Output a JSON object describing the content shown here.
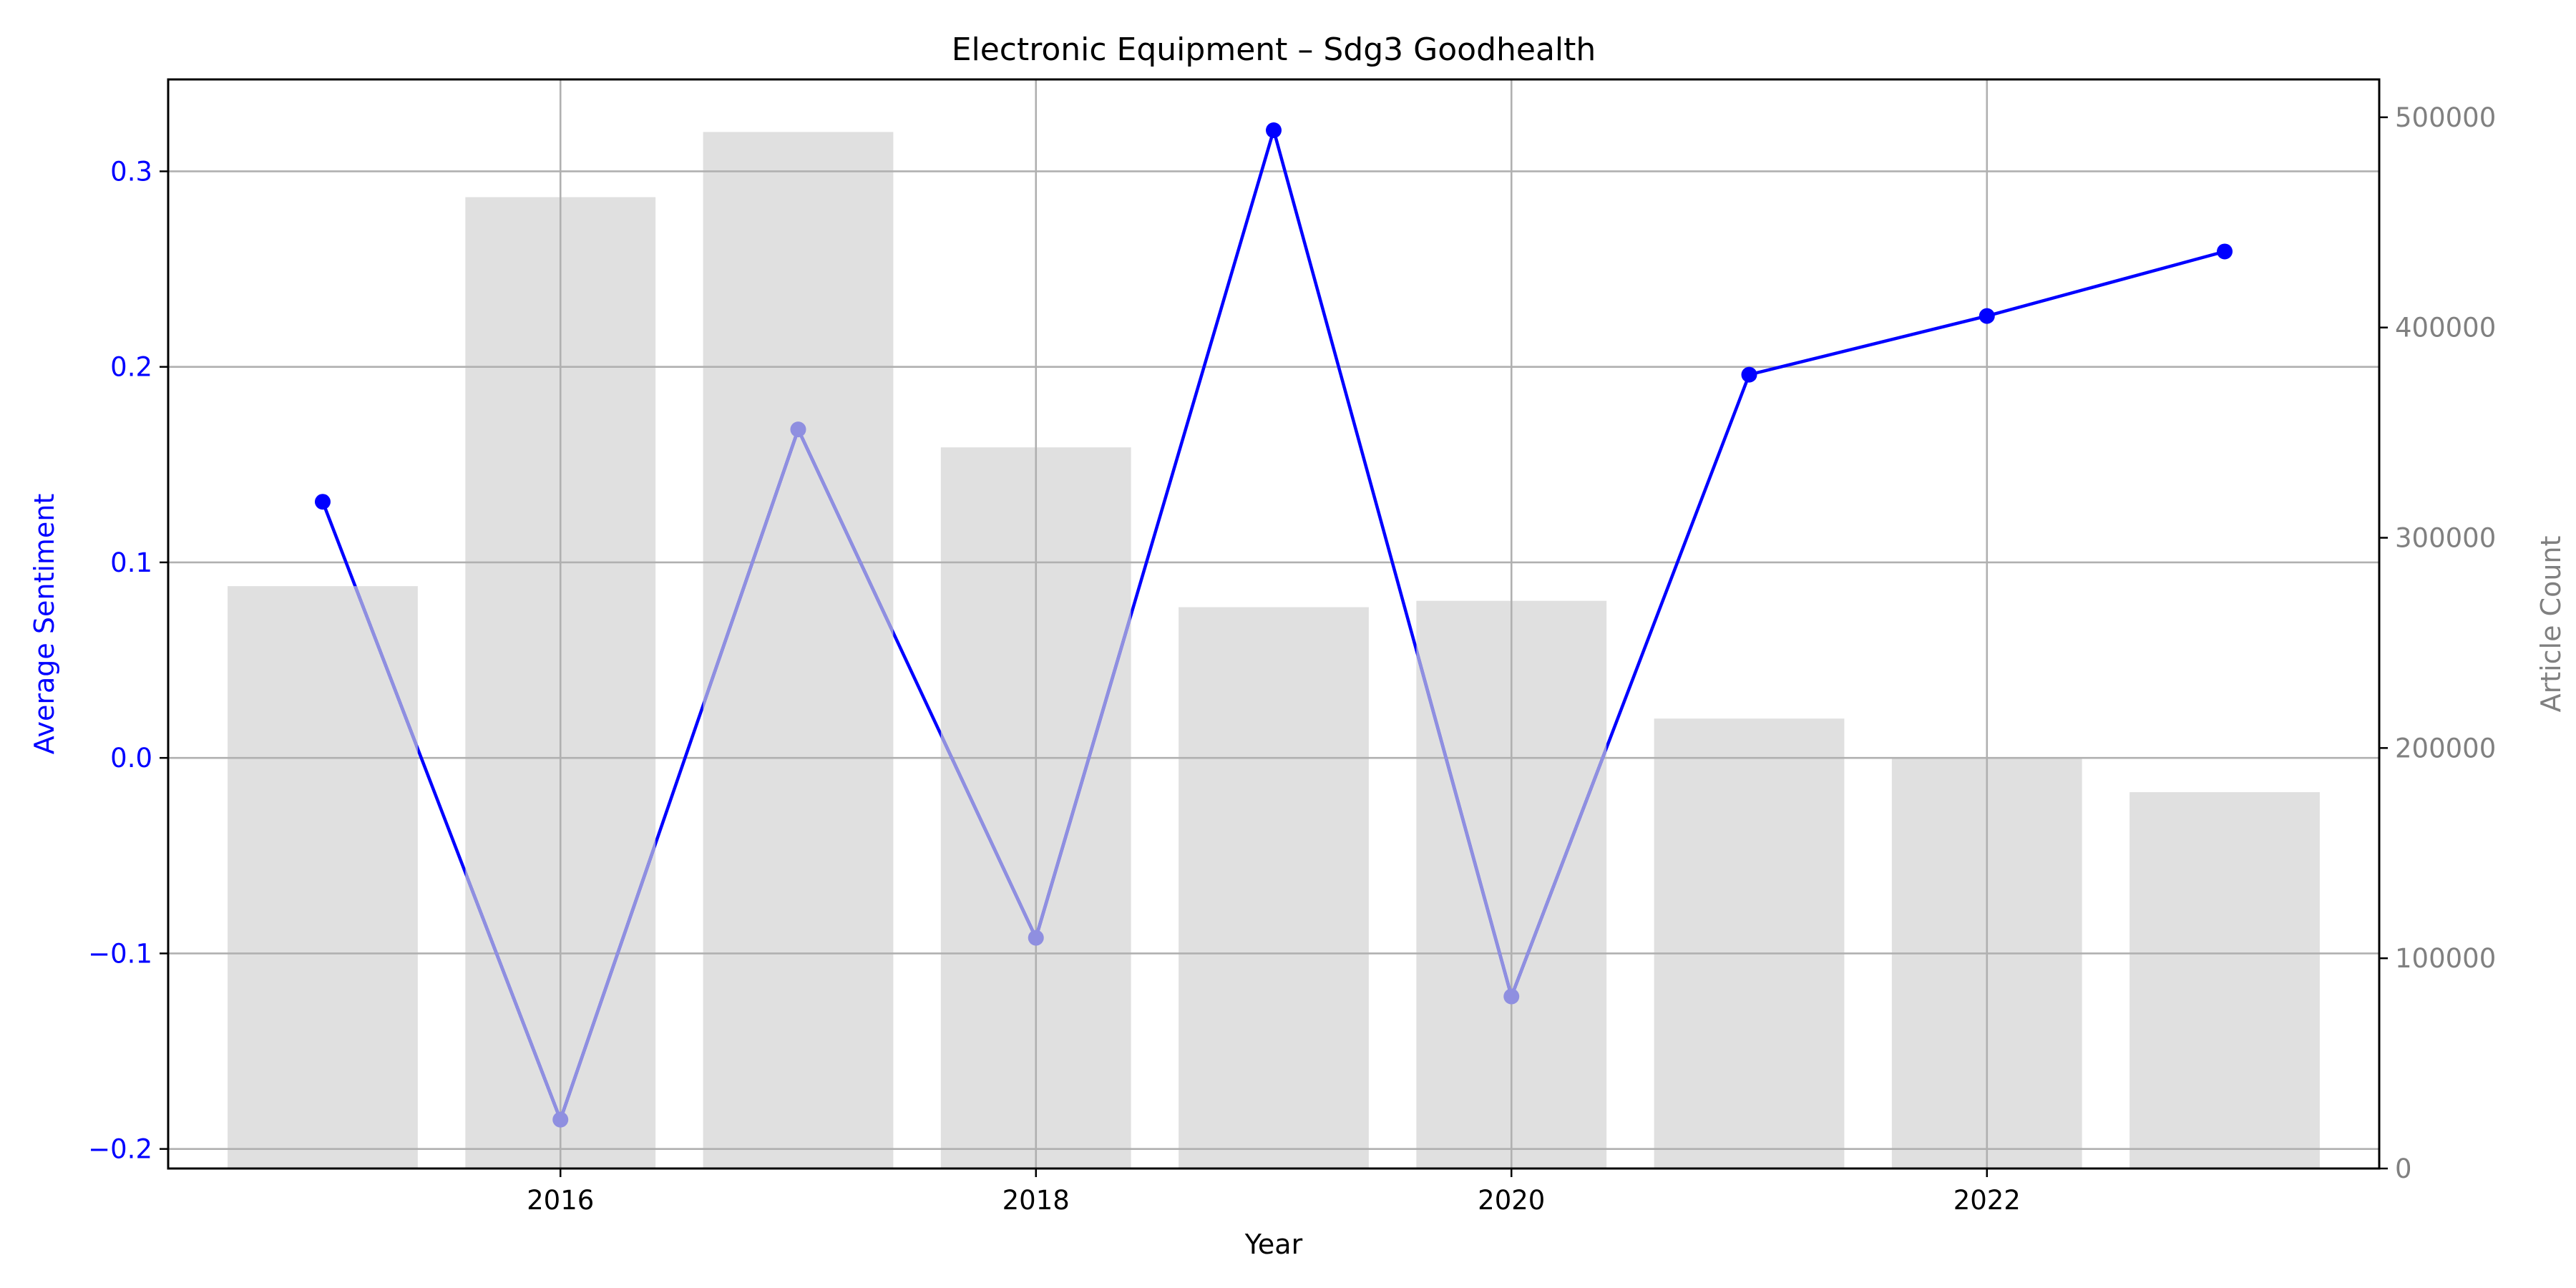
{
  "chart_data": {
    "type": "bar",
    "title": "Electronic Equipment – Sdg3 Goodhealth",
    "xlabel": "Year",
    "ylabel_left": "Average Sentiment",
    "ylabel_right": "Article Count",
    "x": [
      2015,
      2016,
      2017,
      2018,
      2019,
      2020,
      2021,
      2022,
      2023
    ],
    "xlim": [
      2014.35,
      2023.65
    ],
    "x_ticks": [
      2016,
      2018,
      2020,
      2022
    ],
    "x_tick_labels": [
      "2016",
      "2018",
      "2020",
      "2022"
    ],
    "ylim_left": [
      -0.21,
      0.347
    ],
    "y_left_ticks": [
      -0.2,
      -0.1,
      0.0,
      0.1,
      0.2,
      0.3
    ],
    "y_left_tick_labels": [
      "−0.2",
      "−0.1",
      "0.0",
      "0.1",
      "0.2",
      "0.3"
    ],
    "ylim_right": [
      0,
      518000
    ],
    "y_right_ticks": [
      0,
      100000,
      200000,
      300000,
      400000,
      500000
    ],
    "y_right_tick_labels": [
      "0",
      "100000",
      "200000",
      "300000",
      "400000",
      "500000"
    ],
    "grid": true,
    "series": [
      {
        "kind": "bar",
        "axis": "right",
        "color": "#e0e0e0",
        "values": [
          277000,
          462000,
          493000,
          343000,
          267000,
          270000,
          214000,
          195000,
          179000
        ]
      },
      {
        "kind": "line",
        "axis": "left",
        "color": "#0000ff",
        "values": [
          0.131,
          -0.185,
          0.168,
          -0.092,
          0.321,
          -0.122,
          0.196,
          0.226,
          0.259
        ]
      }
    ],
    "colors": {
      "line": "#0000ff",
      "bar": "#e0e0e0",
      "right_axis_text": "#808080",
      "left_axis_text": "#0000ff"
    }
  }
}
